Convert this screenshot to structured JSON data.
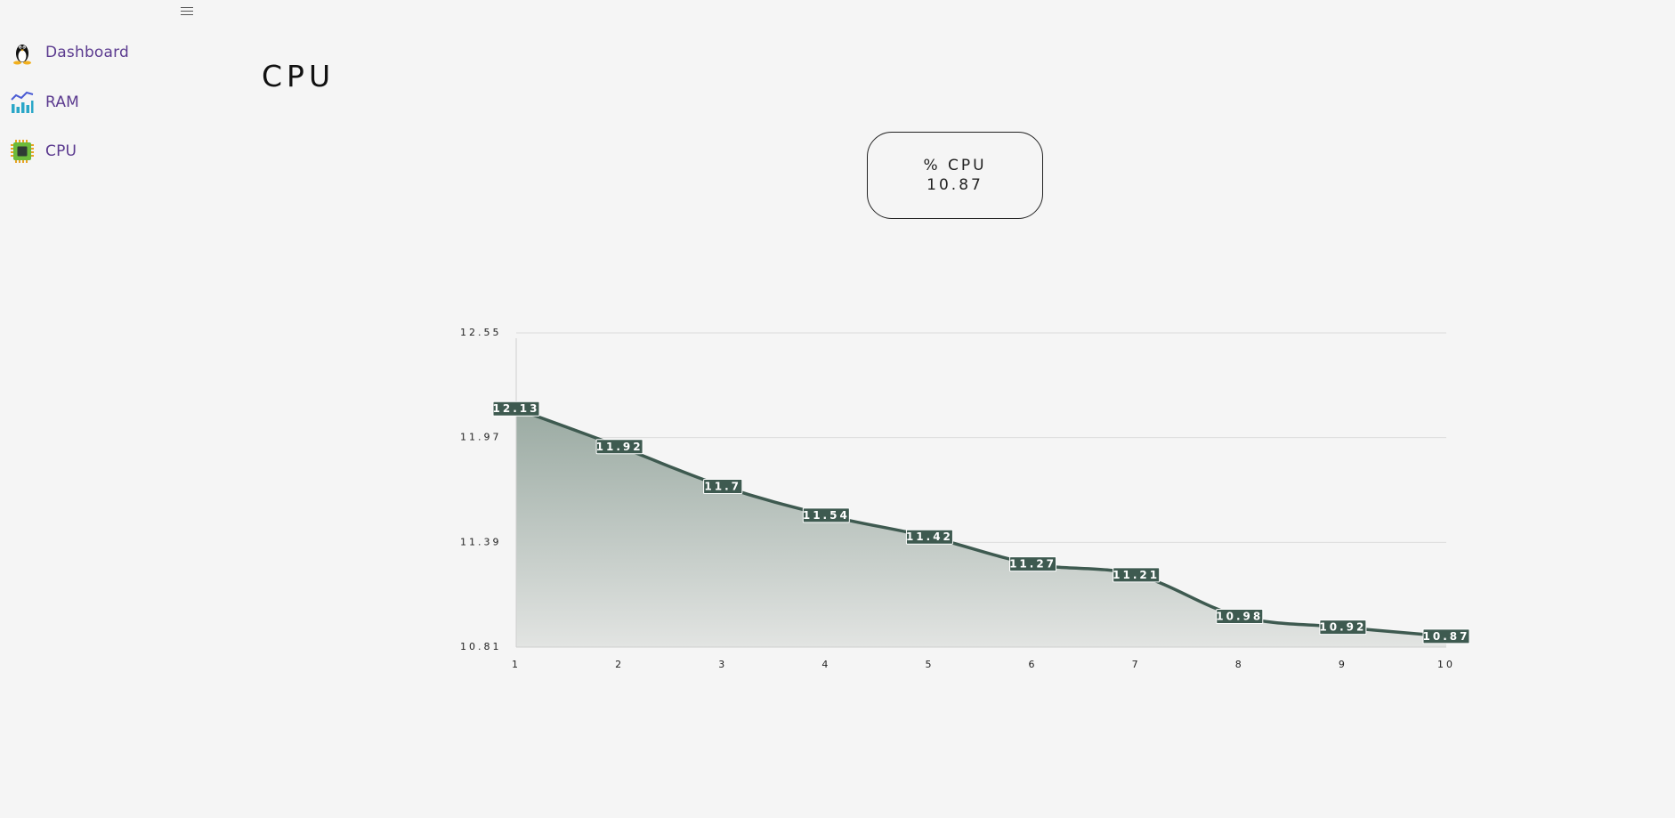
{
  "sidebar": {
    "menu_icon": "hamburger-icon",
    "items": [
      {
        "label": "Dashboard",
        "icon": "linux-penguin-icon"
      },
      {
        "label": "RAM",
        "icon": "bar-chart-icon"
      },
      {
        "label": "CPU",
        "icon": "cpu-chip-icon"
      }
    ]
  },
  "main": {
    "title": "CPU",
    "card": {
      "label": "% CPU",
      "value": "10.87"
    }
  },
  "colors": {
    "accent_text": "#5b3a8f",
    "line": "#3e5a50",
    "fill_top": "#9aaaa2",
    "fill_bottom": "#e2e4e2",
    "label_bg": "#3e5a50"
  },
  "chart_data": {
    "type": "area",
    "x": [
      1,
      2,
      3,
      4,
      5,
      6,
      7,
      8,
      9,
      10
    ],
    "values": [
      12.13,
      11.92,
      11.7,
      11.54,
      11.42,
      11.27,
      11.21,
      10.98,
      10.92,
      10.87
    ],
    "data_labels": [
      "12.13",
      "11.92",
      "11.7",
      "11.54",
      "11.42",
      "11.27",
      "11.21",
      "10.98",
      "10.92",
      "10.87"
    ],
    "y_ticks": [
      10.81,
      11.39,
      11.97,
      12.55
    ],
    "y_tick_labels": [
      "10.81",
      "11.39",
      "11.97",
      "12.55"
    ],
    "x_tick_labels": [
      "1",
      "2",
      "3",
      "4",
      "5",
      "6",
      "7",
      "8",
      "9",
      "10"
    ],
    "ylim": [
      10.81,
      12.55
    ],
    "xlim": [
      1,
      10
    ],
    "grid": true,
    "title": "",
    "xlabel": "",
    "ylabel": ""
  }
}
